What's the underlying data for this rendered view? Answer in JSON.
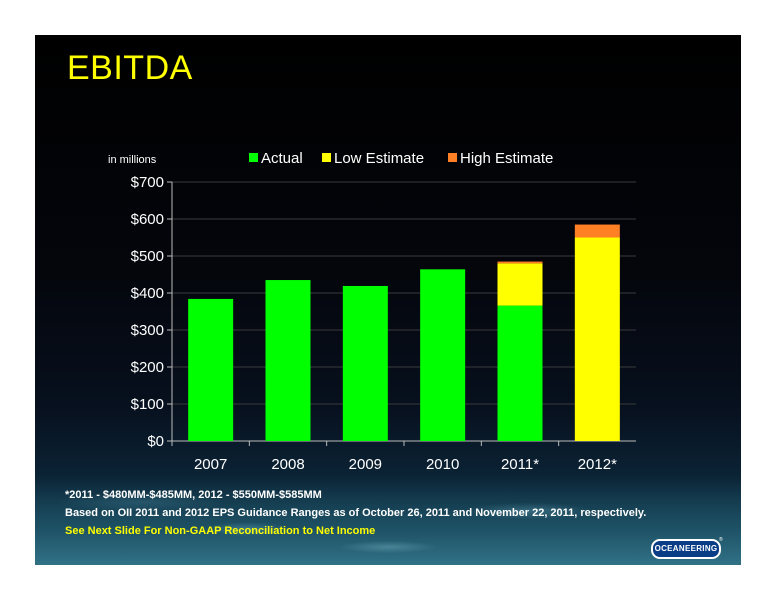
{
  "slide": {
    "title": "EBITDA",
    "footnotes": [
      "*2011 - $480MM-$485MM, 2012 - $550MM-$585MM",
      "Based on  OII 2011 and 2012 EPS Guidance Ranges as of October 26, 2011 and November 22, 2011, respectively.",
      "See Next Slide For Non-GAAP Reconciliation to Net Income"
    ],
    "logo_text": "OCEANEERING",
    "logo_mark": "®"
  },
  "colors": {
    "actual": "#00ff00",
    "low_estimate": "#ffff00",
    "high_estimate": "#ff7f24",
    "title": "#ffff00",
    "footnote_highlight": "#ffff00"
  },
  "chart_data": {
    "type": "bar",
    "stacked": true,
    "unit_label": "in millions",
    "categories": [
      "2007",
      "2008",
      "2009",
      "2010",
      "2011*",
      "2012*"
    ],
    "series": [
      {
        "name": "Actual",
        "values": [
          384,
          435,
          419,
          464,
          366,
          0
        ]
      },
      {
        "name": "Low Estimate",
        "values": [
          0,
          0,
          0,
          0,
          114,
          550
        ]
      },
      {
        "name": "High Estimate",
        "values": [
          0,
          0,
          0,
          0,
          5,
          35
        ]
      }
    ],
    "ylim": [
      0,
      700
    ],
    "yticks": [
      0,
      100,
      200,
      300,
      400,
      500,
      600,
      700
    ],
    "ytick_labels": [
      "$0",
      "$100",
      "$200",
      "$300",
      "$400",
      "$500",
      "$600",
      "$700"
    ],
    "grid": true,
    "legend_position": "top"
  }
}
